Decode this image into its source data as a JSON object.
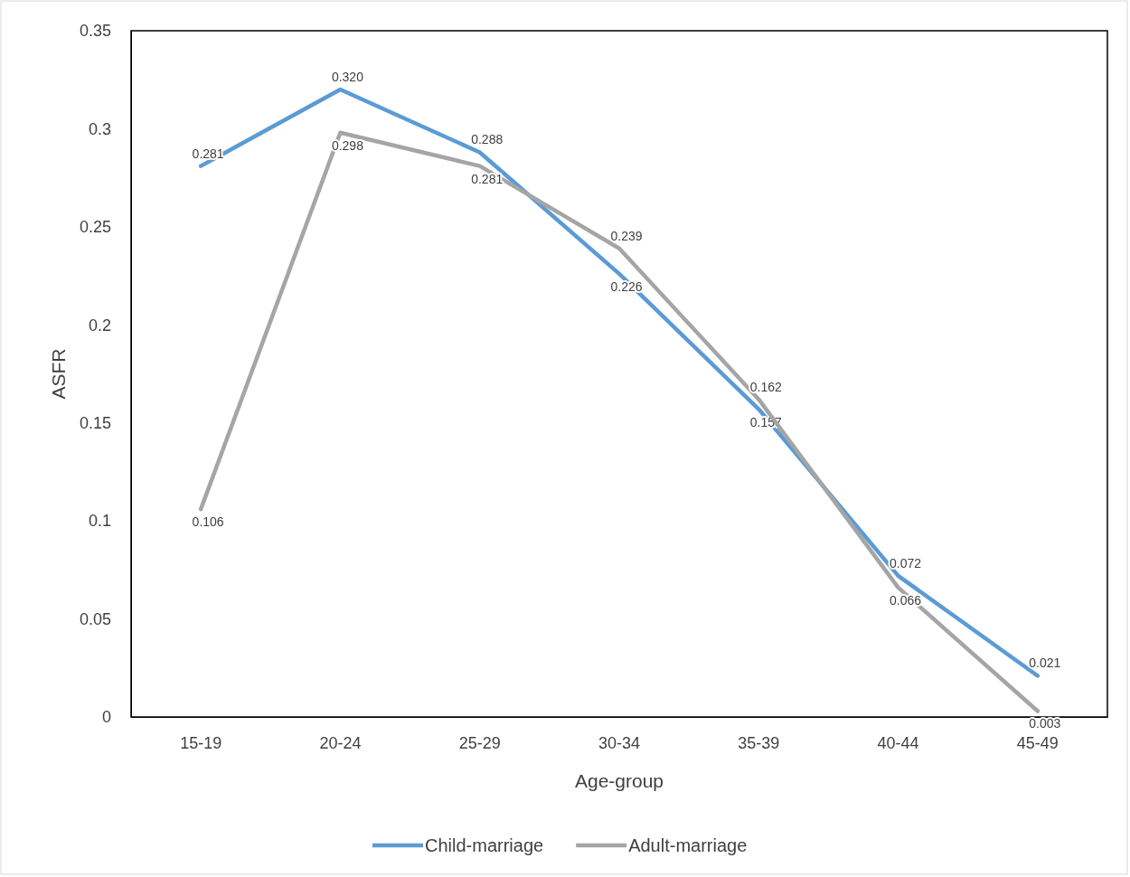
{
  "chart_data": {
    "type": "line",
    "xlabel": "Age-group",
    "ylabel": "ASFR",
    "categories": [
      "15-19",
      "20-24",
      "25-29",
      "30-34",
      "35-39",
      "40-44",
      "45-49"
    ],
    "series": [
      {
        "name": "Child-marriage",
        "color": "#5b9bd5",
        "values": [
          0.281,
          0.32,
          0.288,
          0.226,
          0.157,
          0.072,
          0.021
        ],
        "value_labels": [
          "0.281",
          "0.320",
          "0.288",
          "0.226",
          "0.157",
          "0.072",
          "0.021"
        ]
      },
      {
        "name": "Adult-marriage",
        "color": "#a5a5a5",
        "values": [
          0.106,
          0.298,
          0.281,
          0.239,
          0.162,
          0.066,
          0.003
        ],
        "value_labels": [
          "0.106",
          "0.298",
          "0.281",
          "0.239",
          "0.162",
          "0.066",
          "0.003"
        ]
      }
    ],
    "ylim": [
      0,
      0.35
    ],
    "yticks": [
      0,
      0.05,
      0.1,
      0.15,
      0.2,
      0.25,
      0.3,
      0.35
    ],
    "grid": false,
    "legend": "bottom",
    "marker": "none",
    "line_style": "solid"
  }
}
